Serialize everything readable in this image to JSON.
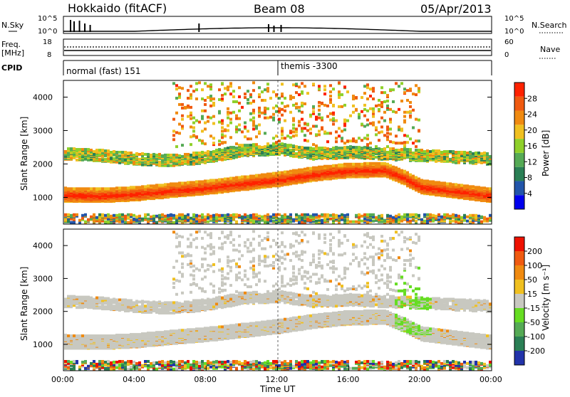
{
  "header": {
    "station": "Hokkaido (fitACF)",
    "beam": "Beam 08",
    "date": "05/Apr/2013"
  },
  "noise_panel": {
    "left_label": "N.Sky",
    "right_label": "N.Search",
    "tick_top_left": "10^5",
    "tick_bottom_left": "10^0",
    "tick_top_right": "10^5",
    "tick_bottom_right": "10^0"
  },
  "freq_panel": {
    "left_label_1": "Freq.",
    "left_label_2": "[MHz]",
    "left_top": "18",
    "left_bottom": "8",
    "right_label": "Nave",
    "right_top": "60",
    "right_bottom": "0"
  },
  "cpid_panel": {
    "label": "CPID",
    "program_1": "normal (fast) 151",
    "program_2": "themis -3300"
  },
  "colors": {
    "velocity_ground": "#c8c8c0",
    "velocity_green": "#66dd22"
  },
  "chart_data": [
    {
      "type": "heatmap",
      "title": "",
      "ylabel": "Slant Range [km]",
      "xlabel": "Time UT",
      "xlim": [
        0,
        24
      ],
      "ylim": [
        200,
        4500
      ],
      "yticks": [
        "1000",
        "2000",
        "3000",
        "4000"
      ],
      "colorbar": {
        "label": "Power [dB]",
        "ticks": [
          "4",
          "8",
          "12",
          "16",
          "20",
          "24",
          "28"
        ],
        "colors": [
          "#0000ee",
          "#2255aa",
          "#2a7f55",
          "#55aa55",
          "#8fd02a",
          "#f0c020",
          "#f08a10",
          "#f05a10",
          "#ff2200"
        ]
      },
      "bands": [
        {
          "name": "main",
          "points": [
            [
              0,
              1080
            ],
            [
              2,
              1060
            ],
            [
              4,
              1110
            ],
            [
              6,
              1210
            ],
            [
              8,
              1300
            ],
            [
              10,
              1420
            ],
            [
              12,
              1540
            ],
            [
              14,
              1700
            ],
            [
              16,
              1810
            ],
            [
              18,
              1820
            ],
            [
              19,
              1600
            ],
            [
              20,
              1320
            ],
            [
              22,
              1180
            ],
            [
              24,
              1050
            ]
          ],
          "halfwidth": 200
        },
        {
          "name": "upper",
          "points": [
            [
              0,
              2300
            ],
            [
              2,
              2250
            ],
            [
              4,
              2150
            ],
            [
              6,
              2100
            ],
            [
              8,
              2200
            ],
            [
              10,
              2400
            ],
            [
              12,
              2450
            ],
            [
              14,
              2300
            ],
            [
              16,
              2350
            ],
            [
              18,
              2300
            ],
            [
              20,
              2250
            ],
            [
              22,
              2200
            ],
            [
              24,
              2150
            ]
          ],
          "halfwidth": 170
        }
      ]
    },
    {
      "type": "heatmap",
      "title": "",
      "ylabel": "Slant Range [km]",
      "xlabel": "Time UT",
      "xlim": [
        0,
        24
      ],
      "ylim": [
        200,
        4500
      ],
      "yticks": [
        "1000",
        "2000",
        "3000",
        "4000"
      ],
      "xticks": [
        "00:00",
        "04:00",
        "08:00",
        "12:00",
        "16:00",
        "20:00",
        "00:00"
      ],
      "colorbar": {
        "label": "Velocity [m s⁻¹]",
        "ticks": [
          "200",
          "100",
          "50",
          "15",
          "-15",
          "-50",
          "-100",
          "-200"
        ],
        "colors": [
          "#2233aa",
          "#2a7f55",
          "#55aa55",
          "#66dd22",
          "#c8c8c0",
          "#f0c020",
          "#f08a10",
          "#f05a10",
          "#ee1100"
        ]
      }
    }
  ]
}
